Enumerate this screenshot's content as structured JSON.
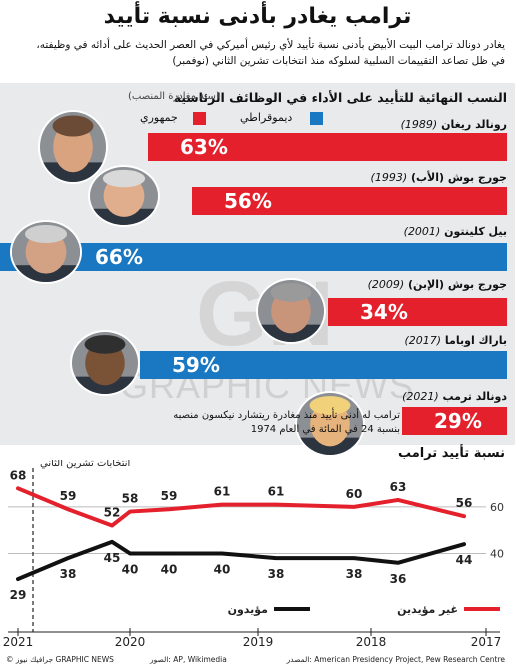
{
  "title": "ترامب يغادر بأدنى نسبة تأييد",
  "subtitle_line1": "يغادر دونالد ترامب البيت الأبيض بأدنى نسبة تأييد لأي رئيس أميركي في العصر الحديث على أدائه في وظيفته،",
  "subtitle_line2": "في ظل تصاعد التقييمات السلبية لسلوكه منذ انتخابات تشرين الثاني (نوفمبر)",
  "panel": {
    "title": "النسب النهائية للتأييد على الأداء في الوظائف الرئاسية",
    "note": "(سنة مغادرة المنصب)",
    "legend": {
      "republican": "جمهوري",
      "democrat": "ديموقراطي"
    },
    "presidents": [
      {
        "name": "رونالد ريغان",
        "year": "(1989)",
        "pct": "63%",
        "party": "republican"
      },
      {
        "name": "جورج بوش (الأب)",
        "year": "(1993)",
        "pct": "56%",
        "party": "republican"
      },
      {
        "name": "بيل كلينتون",
        "year": "(2001)",
        "pct": "66%",
        "party": "democrat"
      },
      {
        "name": "جورج بوش (الإبن)",
        "year": "(2009)",
        "pct": "34%",
        "party": "republican"
      },
      {
        "name": "باراك اوباما",
        "year": "(2017)",
        "pct": "59%",
        "party": "democrat"
      },
      {
        "name": "دونالد ترمب",
        "year": "(2021)",
        "pct": "29%",
        "party": "republican"
      }
    ],
    "nixon_note_1": "ترامب له أدنى تأييد منذ مغادرة ريتشارد نيكسون منصبه",
    "nixon_note_2": "بنسبة 24 في المائة في العام 1974"
  },
  "watermark": "GRAPHIC NEWS",
  "watermark_logo": "GN",
  "colors": {
    "republican": "#e3202b",
    "democrat": "#1a78c2",
    "approve_line": "#111111",
    "disapprove_line": "#e3202b"
  },
  "chart_data": {
    "type": "line",
    "title": "نسبة تأييد ترامب",
    "x_tick_labels": [
      "2017",
      "2018",
      "2019",
      "2020",
      "2021"
    ],
    "x_direction": "right-to-left",
    "annotation": "انتخابات تشرين الثاني",
    "series": [
      {
        "name": "غير مؤيدين",
        "color": "#e3202b",
        "values": [
          56,
          63,
          60,
          61,
          61,
          59,
          58,
          52,
          59,
          68
        ]
      },
      {
        "name": "مؤيدون",
        "color": "#111111",
        "values": [
          44,
          36,
          38,
          38,
          40,
          40,
          40,
          45,
          38,
          29
        ]
      }
    ],
    "labeled_points": [
      {
        "series": 0,
        "idx": 0,
        "label": "56"
      },
      {
        "series": 0,
        "idx": 1,
        "label": "63"
      },
      {
        "series": 0,
        "idx": 2,
        "label": "60"
      },
      {
        "series": 0,
        "idx": 3,
        "label": "61"
      },
      {
        "series": 0,
        "idx": 4,
        "label": "61"
      },
      {
        "series": 0,
        "idx": 5,
        "label": "59"
      },
      {
        "series": 0,
        "idx": 6,
        "label": "58"
      },
      {
        "series": 0,
        "idx": 7,
        "label": "52"
      },
      {
        "series": 0,
        "idx": 8,
        "label": "59"
      },
      {
        "series": 0,
        "idx": 9,
        "label": "68"
      },
      {
        "series": 1,
        "idx": 0,
        "label": "44"
      },
      {
        "series": 1,
        "idx": 1,
        "label": "36"
      },
      {
        "series": 1,
        "idx": 2,
        "label": "38"
      },
      {
        "series": 1,
        "idx": 3,
        "label": "38"
      },
      {
        "series": 1,
        "idx": 4,
        "label": "40"
      },
      {
        "series": 1,
        "idx": 5,
        "label": "40"
      },
      {
        "series": 1,
        "idx": 6,
        "label": "40"
      },
      {
        "series": 1,
        "idx": 7,
        "label": "45"
      },
      {
        "series": 1,
        "idx": 8,
        "label": "38"
      },
      {
        "series": 1,
        "idx": 9,
        "label": "29"
      }
    ],
    "y_tick_labels": [
      "40",
      "60"
    ],
    "ylim": [
      20,
      75
    ],
    "legend": {
      "approve": "مؤيدون",
      "disapprove": "غير مؤيدين"
    }
  },
  "footer": {
    "source": "المصدر: American Presidency Project, Pew Research Centre",
    "pictures": "الصور: AP, Wikimedia",
    "credit": "© جرافيك نيوز GRAPHIC NEWS"
  }
}
